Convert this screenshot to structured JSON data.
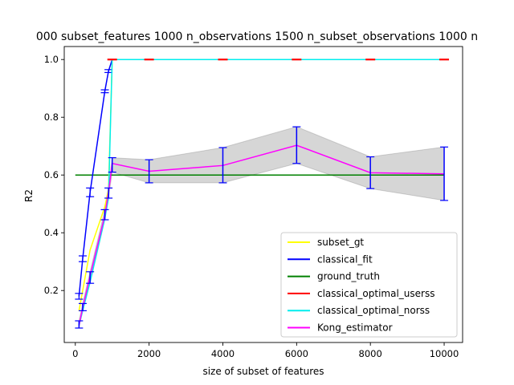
{
  "chart_data": {
    "type": "line",
    "title": "000 subset_features 1000 n_observations 1500 n_subset_observations 1000 n",
    "xlabel": "size of subset of features",
    "ylabel": "R2",
    "xlim": [
      -300,
      10500
    ],
    "ylim": [
      0.02,
      1.045
    ],
    "xticks": [
      0,
      2000,
      4000,
      6000,
      8000,
      10000
    ],
    "xtick_labels": [
      "0",
      "2000",
      "4000",
      "6000",
      "8000",
      "10000"
    ],
    "yticks": [
      0.2,
      0.4,
      0.6,
      0.8,
      1.0
    ],
    "ytick_labels": [
      "0.2",
      "0.4",
      "0.6",
      "0.8",
      "1.0"
    ],
    "grid": false,
    "legend_position": "lower-right",
    "series": [
      {
        "name": "subset_gt",
        "color": "#ffff00",
        "x": [
          100,
          200,
          400,
          800,
          900,
          1000,
          2000,
          4000,
          6000,
          8000,
          10000
        ],
        "y": [
          0.13,
          0.2,
          0.34,
          0.49,
          0.55,
          1.0,
          1.0,
          1.0,
          1.0,
          1.0,
          1.0
        ]
      },
      {
        "name": "classical_fit",
        "color": "#0000ff",
        "x": [
          100,
          200,
          400,
          800,
          900,
          1000,
          2000,
          4000,
          6000,
          8000,
          10000
        ],
        "y": [
          0.18,
          0.31,
          0.54,
          0.89,
          0.96,
          1.0,
          1.0,
          1.0,
          1.0,
          1.0,
          1.0
        ],
        "err": [
          0.01,
          0.01,
          0.015,
          0.005,
          0.005,
          0,
          0,
          0,
          0,
          0,
          0
        ]
      },
      {
        "name": "ground_truth",
        "color": "#008000",
        "x": [
          0,
          10000
        ],
        "y": [
          0.6,
          0.6
        ]
      },
      {
        "name": "classical_optimal_userss",
        "color": "#ff0000",
        "x": [
          1000,
          10000
        ],
        "y": [
          1.0,
          1.0
        ],
        "dashes": [
          1000,
          2000,
          4000,
          6000,
          8000,
          10000
        ]
      },
      {
        "name": "classical_optimal_norss",
        "color": "#00eeee",
        "x": [
          100,
          200,
          400,
          800,
          900,
          1000,
          2000,
          4000,
          6000,
          8000,
          10000
        ],
        "y": [
          0.08,
          0.13,
          0.23,
          0.45,
          0.52,
          1.0,
          1.0,
          1.0,
          1.0,
          1.0,
          1.0
        ]
      },
      {
        "name": "Kong_estimator",
        "color": "#ff00ff",
        "x": [
          100,
          200,
          400,
          800,
          900,
          1000,
          2000,
          4000,
          6000,
          8000,
          10000
        ],
        "y": [
          0.08,
          0.14,
          0.25,
          0.46,
          0.54,
          0.64,
          0.613,
          0.633,
          0.703,
          0.608,
          0.604
        ],
        "lower": [
          0.07,
          0.13,
          0.225,
          0.445,
          0.52,
          0.61,
          0.573,
          0.573,
          0.64,
          0.553,
          0.512
        ],
        "upper": [
          0.095,
          0.155,
          0.265,
          0.48,
          0.555,
          0.66,
          0.653,
          0.695,
          0.767,
          0.663,
          0.697
        ],
        "errcolor": "#0000ff"
      }
    ]
  }
}
